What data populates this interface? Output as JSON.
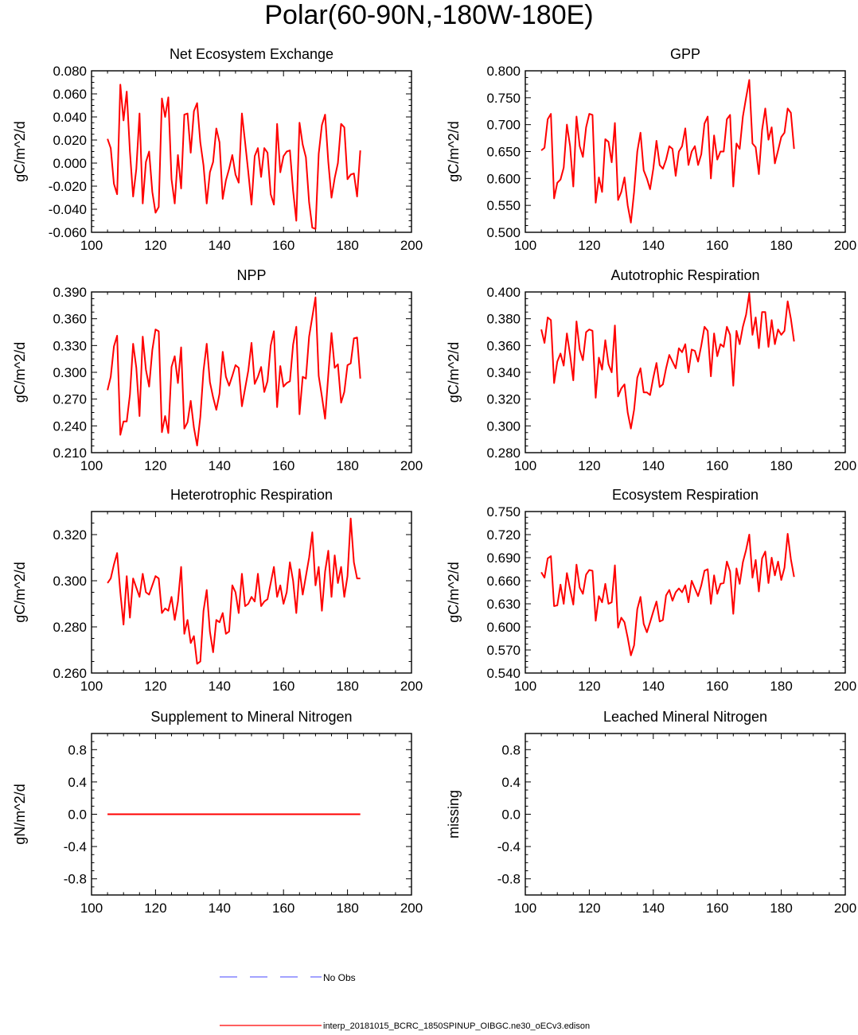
{
  "title": "Polar(60-90N,-180W-180E)",
  "colors": {
    "model": "#ff0000",
    "obs": "#6a6aff",
    "axis": "#000000"
  },
  "legend": {
    "obs_label": "No Obs",
    "model_label": "interp_20181015_BCRC_1850SPINUP_OIBGC.ne30_oECv3.edison"
  },
  "chart_data": [
    {
      "type": "line",
      "title": "Net Ecosystem Exchange",
      "ylabel": "gC/m^2/d",
      "xlim": [
        100,
        200
      ],
      "ylim": [
        -0.06,
        0.08
      ],
      "xticks": [
        100,
        120,
        140,
        160,
        180,
        200
      ],
      "yticks": [
        -0.06,
        -0.04,
        -0.02,
        0,
        0.02,
        0.04,
        0.06,
        0.08
      ],
      "yticklabels": [
        "-0.060",
        "-0.040",
        "-0.020",
        "0.000",
        "0.020",
        "0.040",
        "0.060",
        "0.080"
      ],
      "series": [
        {
          "name": "model",
          "x0": 105,
          "dx": 1,
          "values": [
            0.021,
            0.013,
            -0.018,
            -0.027,
            0.068,
            0.037,
            0.062,
            0.01,
            -0.029,
            -0.005,
            0.043,
            -0.035,
            0.001,
            0.01,
            -0.025,
            -0.043,
            -0.038,
            0.056,
            0.04,
            0.057,
            -0.014,
            -0.035,
            0.007,
            -0.022,
            0.042,
            0.043,
            0.009,
            0.045,
            0.052,
            0.018,
            -0.002,
            -0.035,
            -0.008,
            0.001,
            0.03,
            0.018,
            -0.031,
            -0.015,
            -0.005,
            0.007,
            -0.01,
            -0.017,
            0.043,
            0.018,
            -0.008,
            -0.036,
            0.006,
            0.013,
            -0.012,
            0.013,
            0.009,
            -0.027,
            -0.036,
            0.034,
            -0.008,
            0.006,
            0.01,
            0.011,
            -0.024,
            -0.05,
            0.035,
            0.016,
            0.005,
            -0.034,
            -0.056,
            -0.057,
            0.008,
            0.033,
            0.042,
            0.001,
            -0.03,
            -0.013,
            0.0,
            0.034,
            0.031,
            -0.014,
            -0.01,
            -0.009,
            -0.029,
            0.011
          ]
        }
      ]
    },
    {
      "type": "line",
      "title": "GPP",
      "ylabel": "gC/m^2/d",
      "xlim": [
        100,
        200
      ],
      "ylim": [
        0.5,
        0.8
      ],
      "xticks": [
        100,
        120,
        140,
        160,
        180,
        200
      ],
      "yticks": [
        0.5,
        0.55,
        0.6,
        0.65,
        0.7,
        0.75,
        0.8
      ],
      "yticklabels": [
        "0.500",
        "0.550",
        "0.600",
        "0.650",
        "0.700",
        "0.750",
        "0.800"
      ],
      "series": [
        {
          "name": "model",
          "x0": 105,
          "dx": 1,
          "values": [
            0.652,
            0.657,
            0.71,
            0.72,
            0.563,
            0.592,
            0.598,
            0.62,
            0.7,
            0.66,
            0.585,
            0.715,
            0.66,
            0.64,
            0.695,
            0.72,
            0.718,
            0.555,
            0.602,
            0.575,
            0.673,
            0.668,
            0.63,
            0.703,
            0.56,
            0.575,
            0.602,
            0.55,
            0.518,
            0.575,
            0.65,
            0.685,
            0.615,
            0.6,
            0.58,
            0.618,
            0.67,
            0.625,
            0.618,
            0.635,
            0.66,
            0.655,
            0.605,
            0.65,
            0.66,
            0.693,
            0.625,
            0.65,
            0.66,
            0.625,
            0.645,
            0.702,
            0.715,
            0.6,
            0.68,
            0.635,
            0.65,
            0.65,
            0.71,
            0.718,
            0.585,
            0.665,
            0.655,
            0.715,
            0.75,
            0.783,
            0.665,
            0.658,
            0.608,
            0.69,
            0.73,
            0.672,
            0.695,
            0.628,
            0.652,
            0.677,
            0.685,
            0.73,
            0.722,
            0.655
          ]
        }
      ]
    },
    {
      "type": "line",
      "title": "NPP",
      "ylabel": "gC/m^2/d",
      "xlim": [
        100,
        200
      ],
      "ylim": [
        0.21,
        0.39
      ],
      "xticks": [
        100,
        120,
        140,
        160,
        180,
        200
      ],
      "yticks": [
        0.21,
        0.24,
        0.27,
        0.3,
        0.33,
        0.36,
        0.39
      ],
      "yticklabels": [
        "0.210",
        "0.240",
        "0.270",
        "0.300",
        "0.330",
        "0.360",
        "0.390"
      ],
      "series": [
        {
          "name": "model",
          "x0": 105,
          "dx": 1,
          "values": [
            0.28,
            0.295,
            0.329,
            0.341,
            0.23,
            0.245,
            0.245,
            0.275,
            0.332,
            0.305,
            0.251,
            0.34,
            0.303,
            0.284,
            0.325,
            0.348,
            0.346,
            0.233,
            0.251,
            0.232,
            0.306,
            0.318,
            0.288,
            0.328,
            0.237,
            0.244,
            0.268,
            0.238,
            0.218,
            0.25,
            0.302,
            0.332,
            0.289,
            0.272,
            0.258,
            0.276,
            0.323,
            0.295,
            0.285,
            0.296,
            0.308,
            0.305,
            0.262,
            0.282,
            0.302,
            0.333,
            0.287,
            0.295,
            0.306,
            0.278,
            0.29,
            0.33,
            0.346,
            0.261,
            0.307,
            0.284,
            0.288,
            0.29,
            0.331,
            0.351,
            0.253,
            0.295,
            0.293,
            0.34,
            0.362,
            0.384,
            0.296,
            0.273,
            0.248,
            0.297,
            0.344,
            0.305,
            0.309,
            0.266,
            0.278,
            0.308,
            0.31,
            0.338,
            0.339,
            0.293
          ]
        }
      ]
    },
    {
      "type": "line",
      "title": "Autotrophic Respiration",
      "ylabel": "gC/m^2/d",
      "xlim": [
        100,
        200
      ],
      "ylim": [
        0.28,
        0.4
      ],
      "xticks": [
        100,
        120,
        140,
        160,
        180,
        200
      ],
      "yticks": [
        0.28,
        0.3,
        0.32,
        0.34,
        0.36,
        0.38,
        0.4
      ],
      "yticklabels": [
        "0.280",
        "0.300",
        "0.320",
        "0.340",
        "0.360",
        "0.380",
        "0.400"
      ],
      "series": [
        {
          "name": "model",
          "x0": 105,
          "dx": 1,
          "values": [
            0.372,
            0.362,
            0.381,
            0.379,
            0.332,
            0.348,
            0.354,
            0.345,
            0.369,
            0.353,
            0.334,
            0.378,
            0.357,
            0.349,
            0.37,
            0.372,
            0.371,
            0.321,
            0.351,
            0.342,
            0.364,
            0.346,
            0.34,
            0.375,
            0.322,
            0.328,
            0.331,
            0.31,
            0.298,
            0.312,
            0.336,
            0.343,
            0.325,
            0.325,
            0.323,
            0.336,
            0.347,
            0.329,
            0.331,
            0.343,
            0.353,
            0.348,
            0.343,
            0.358,
            0.355,
            0.361,
            0.34,
            0.357,
            0.356,
            0.348,
            0.36,
            0.374,
            0.371,
            0.337,
            0.369,
            0.352,
            0.361,
            0.359,
            0.374,
            0.368,
            0.33,
            0.371,
            0.361,
            0.374,
            0.383,
            0.399,
            0.368,
            0.381,
            0.358,
            0.385,
            0.385,
            0.359,
            0.379,
            0.361,
            0.372,
            0.368,
            0.371,
            0.393,
            0.38,
            0.363
          ]
        }
      ]
    },
    {
      "type": "line",
      "title": "Heterotrophic Respiration",
      "ylabel": "gC/m^2/d",
      "xlim": [
        100,
        200
      ],
      "ylim": [
        0.26,
        0.33
      ],
      "xticks": [
        100,
        120,
        140,
        160,
        180,
        200
      ],
      "yticks": [
        0.26,
        0.28,
        0.3,
        0.32
      ],
      "yticklabels": [
        "0.260",
        "0.280",
        "0.300",
        "0.320"
      ],
      "series": [
        {
          "name": "model",
          "x0": 105,
          "dx": 1,
          "values": [
            0.299,
            0.301,
            0.307,
            0.312,
            0.295,
            0.281,
            0.302,
            0.284,
            0.301,
            0.297,
            0.293,
            0.303,
            0.295,
            0.294,
            0.298,
            0.302,
            0.301,
            0.286,
            0.288,
            0.287,
            0.293,
            0.283,
            0.291,
            0.306,
            0.277,
            0.283,
            0.273,
            0.276,
            0.264,
            0.265,
            0.287,
            0.296,
            0.278,
            0.269,
            0.283,
            0.282,
            0.286,
            0.277,
            0.278,
            0.298,
            0.295,
            0.286,
            0.303,
            0.289,
            0.29,
            0.293,
            0.291,
            0.303,
            0.289,
            0.291,
            0.292,
            0.299,
            0.306,
            0.293,
            0.298,
            0.29,
            0.295,
            0.308,
            0.3,
            0.286,
            0.305,
            0.294,
            0.302,
            0.31,
            0.321,
            0.298,
            0.306,
            0.287,
            0.304,
            0.313,
            0.293,
            0.311,
            0.299,
            0.306,
            0.293,
            0.302,
            0.327,
            0.308,
            0.301,
            0.301
          ]
        }
      ]
    },
    {
      "type": "line",
      "title": "Ecosystem Respiration",
      "ylabel": "gC/m^2/d",
      "xlim": [
        100,
        200
      ],
      "ylim": [
        0.54,
        0.75
      ],
      "xticks": [
        100,
        120,
        140,
        160,
        180,
        200
      ],
      "yticks": [
        0.54,
        0.57,
        0.6,
        0.63,
        0.66,
        0.69,
        0.72,
        0.75
      ],
      "yticklabels": [
        "0.540",
        "0.570",
        "0.600",
        "0.630",
        "0.660",
        "0.690",
        "0.720",
        "0.750"
      ],
      "series": [
        {
          "name": "model",
          "x0": 105,
          "dx": 1,
          "values": [
            0.671,
            0.664,
            0.689,
            0.692,
            0.627,
            0.628,
            0.655,
            0.63,
            0.67,
            0.649,
            0.629,
            0.681,
            0.651,
            0.643,
            0.668,
            0.674,
            0.673,
            0.608,
            0.64,
            0.632,
            0.656,
            0.63,
            0.632,
            0.68,
            0.599,
            0.612,
            0.606,
            0.586,
            0.563,
            0.576,
            0.623,
            0.639,
            0.604,
            0.593,
            0.606,
            0.62,
            0.633,
            0.607,
            0.609,
            0.641,
            0.648,
            0.634,
            0.645,
            0.65,
            0.645,
            0.654,
            0.632,
            0.66,
            0.65,
            0.64,
            0.654,
            0.673,
            0.675,
            0.63,
            0.667,
            0.643,
            0.656,
            0.657,
            0.685,
            0.672,
            0.617,
            0.676,
            0.656,
            0.684,
            0.7,
            0.72,
            0.664,
            0.687,
            0.646,
            0.689,
            0.698,
            0.657,
            0.69,
            0.667,
            0.685,
            0.661,
            0.677,
            0.721,
            0.688,
            0.665
          ]
        }
      ]
    },
    {
      "type": "line",
      "title": "Supplement to Mineral Nitrogen",
      "ylabel": "gN/m^2/d",
      "xlim": [
        100,
        200
      ],
      "ylim": [
        -1,
        1
      ],
      "xticks": [
        100,
        120,
        140,
        160,
        180,
        200
      ],
      "yticks": [
        -0.8,
        -0.4,
        0,
        0.4,
        0.8
      ],
      "yticklabels": [
        "-0.8",
        "-0.4",
        "0.0",
        "0.4",
        "0.8"
      ],
      "series": [
        {
          "name": "model",
          "x0": 105,
          "dx": 79,
          "values": [
            0,
            0
          ]
        }
      ]
    },
    {
      "type": "line",
      "title": "Leached Mineral Nitrogen",
      "ylabel": "missing",
      "xlim": [
        100,
        200
      ],
      "ylim": [
        -1,
        1
      ],
      "xticks": [
        100,
        120,
        140,
        160,
        180,
        200
      ],
      "yticks": [
        -0.8,
        -0.4,
        0,
        0.4,
        0.8
      ],
      "yticklabels": [
        "-0.8",
        "-0.4",
        "0.0",
        "0.4",
        "0.8"
      ],
      "series": []
    }
  ]
}
